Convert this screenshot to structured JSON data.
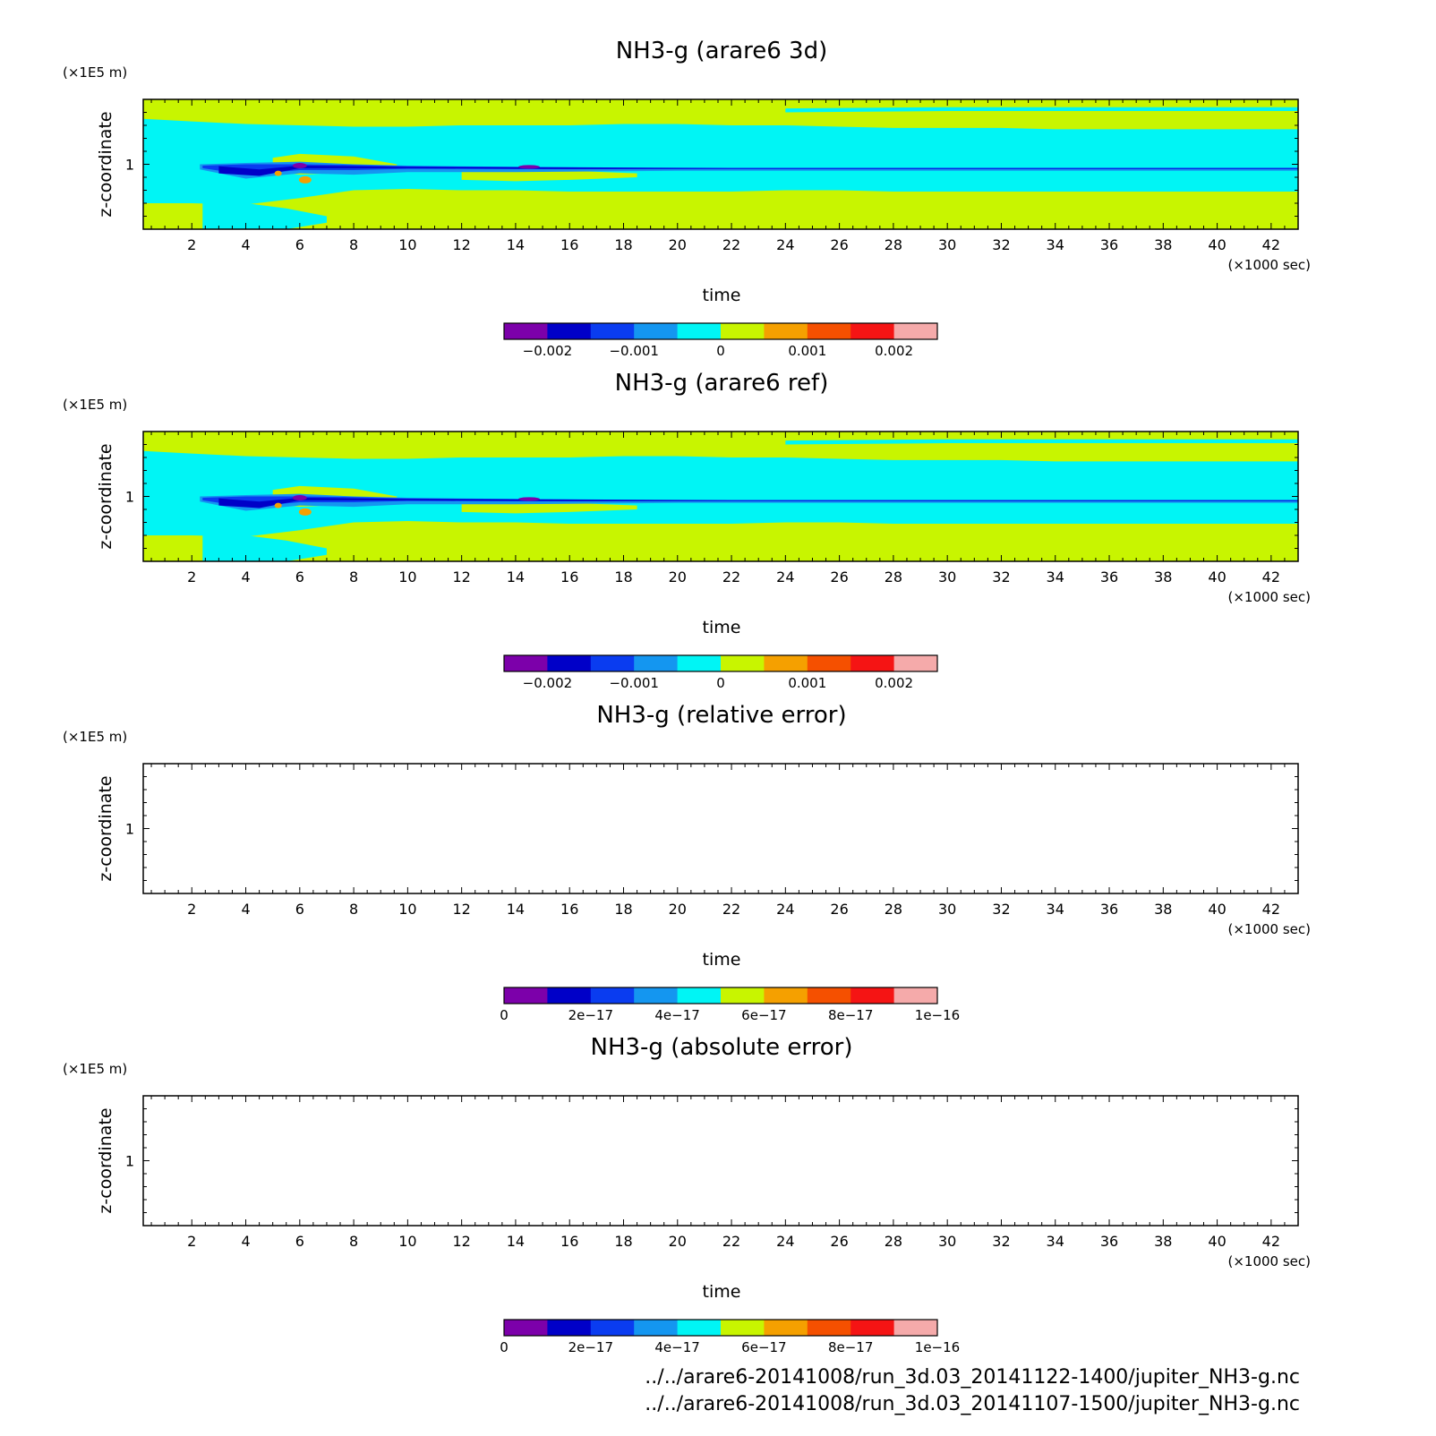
{
  "figure": {
    "footer": [
      "../../arare6-20141008/run_3d.03_20141122-1400/jupiter_NH3-g.nc",
      "../../arare6-20141008/run_3d.03_20141107-1500/jupiter_NH3-g.nc"
    ]
  },
  "chart_data": [
    {
      "type": "heatmap",
      "title": "NH3-g (arare6 3d)",
      "xlabel": "time",
      "ylabel": "z-coordinate",
      "xunit": "(×1000 sec)",
      "yunit": "(×1E5 m)",
      "xlim": [
        0.2,
        43
      ],
      "ylim": [
        0.5,
        1.5
      ],
      "xticks": [
        "2",
        "4",
        "6",
        "8",
        "10",
        "12",
        "14",
        "16",
        "18",
        "20",
        "22",
        "24",
        "26",
        "28",
        "30",
        "32",
        "34",
        "36",
        "38",
        "40",
        "42"
      ],
      "yticks": [
        "1"
      ],
      "colorbar": {
        "colors": [
          "#7c00aa",
          "#0000c8",
          "#0a3cf0",
          "#1496f0",
          "#00f5f5",
          "#c8f500",
          "#f5a000",
          "#f55000",
          "#f51414",
          "#f5aaaa"
        ],
        "ticks": [
          "−0.002",
          "−0.001",
          "0",
          "0.001",
          "0.002"
        ],
        "range": [
          -0.0025,
          0.0025
        ]
      },
      "filled": true
    },
    {
      "type": "heatmap",
      "title": "NH3-g (arare6 ref)",
      "xlabel": "time",
      "ylabel": "z-coordinate",
      "xunit": "(×1000 sec)",
      "yunit": "(×1E5 m)",
      "xlim": [
        0.2,
        43
      ],
      "ylim": [
        0.5,
        1.5
      ],
      "xticks": [
        "2",
        "4",
        "6",
        "8",
        "10",
        "12",
        "14",
        "16",
        "18",
        "20",
        "22",
        "24",
        "26",
        "28",
        "30",
        "32",
        "34",
        "36",
        "38",
        "40",
        "42"
      ],
      "yticks": [
        "1"
      ],
      "colorbar": {
        "colors": [
          "#7c00aa",
          "#0000c8",
          "#0a3cf0",
          "#1496f0",
          "#00f5f5",
          "#c8f500",
          "#f5a000",
          "#f55000",
          "#f51414",
          "#f5aaaa"
        ],
        "ticks": [
          "−0.002",
          "−0.001",
          "0",
          "0.001",
          "0.002"
        ],
        "range": [
          -0.0025,
          0.0025
        ]
      },
      "filled": true
    },
    {
      "type": "heatmap",
      "title": "NH3-g (relative error)",
      "xlabel": "time",
      "ylabel": "z-coordinate",
      "xunit": "(×1000 sec)",
      "yunit": "(×1E5 m)",
      "xlim": [
        0.2,
        43
      ],
      "ylim": [
        0.5,
        1.5
      ],
      "xticks": [
        "2",
        "4",
        "6",
        "8",
        "10",
        "12",
        "14",
        "16",
        "18",
        "20",
        "22",
        "24",
        "26",
        "28",
        "30",
        "32",
        "34",
        "36",
        "38",
        "40",
        "42"
      ],
      "yticks": [
        "1"
      ],
      "colorbar": {
        "colors": [
          "#7c00aa",
          "#0000c8",
          "#0a3cf0",
          "#1496f0",
          "#00f5f5",
          "#c8f500",
          "#f5a000",
          "#f55000",
          "#f51414",
          "#f5aaaa"
        ],
        "ticks": [
          "0",
          "2e−17",
          "4e−17",
          "6e−17",
          "8e−17",
          "1e−16"
        ],
        "range": [
          0,
          1e-16
        ]
      },
      "filled": false
    },
    {
      "type": "heatmap",
      "title": "NH3-g (absolute error)",
      "xlabel": "time",
      "ylabel": "z-coordinate",
      "xunit": "(×1000 sec)",
      "yunit": "(×1E5 m)",
      "xlim": [
        0.2,
        43
      ],
      "ylim": [
        0.5,
        1.5
      ],
      "xticks": [
        "2",
        "4",
        "6",
        "8",
        "10",
        "12",
        "14",
        "16",
        "18",
        "20",
        "22",
        "24",
        "26",
        "28",
        "30",
        "32",
        "34",
        "36",
        "38",
        "40",
        "42"
      ],
      "yticks": [
        "1"
      ],
      "colorbar": {
        "colors": [
          "#7c00aa",
          "#0000c8",
          "#0a3cf0",
          "#1496f0",
          "#00f5f5",
          "#c8f500",
          "#f5a000",
          "#f55000",
          "#f51414",
          "#f5aaaa"
        ],
        "ticks": [
          "0",
          "2e−17",
          "4e−17",
          "6e−17",
          "8e−17",
          "1e−16"
        ],
        "range": [
          0,
          1e-16
        ]
      },
      "filled": false
    }
  ]
}
